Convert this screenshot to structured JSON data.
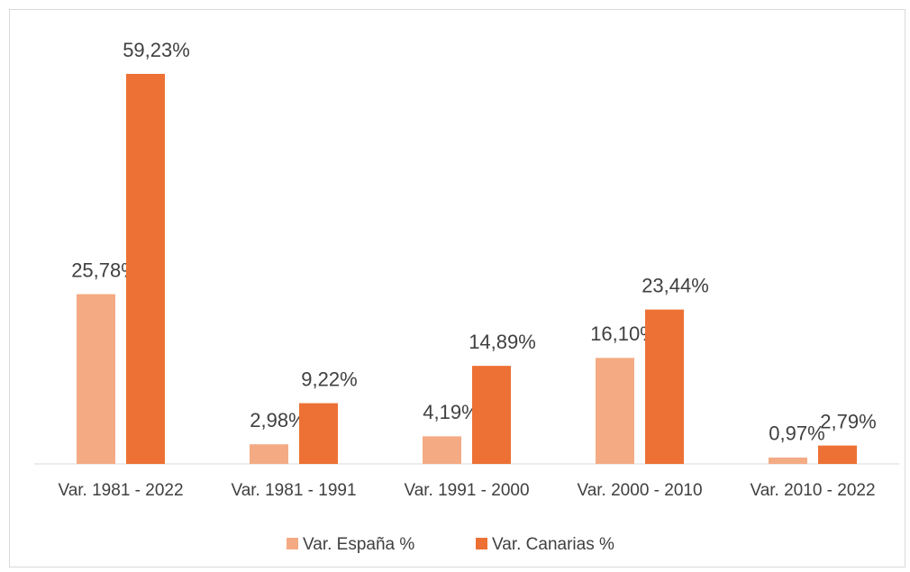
{
  "chart_data": {
    "type": "bar",
    "categories": [
      "Var. 1981 - 2022",
      "Var. 1981 - 1991",
      "Var. 1991 - 2000",
      "Var. 2000 - 2010",
      "Var. 2010 - 2022"
    ],
    "series": [
      {
        "name": "Var. España %",
        "color": "#f4ab84",
        "values": [
          25.78,
          2.98,
          4.19,
          16.1,
          0.97
        ],
        "value_labels": [
          "25,78%",
          "2,98%",
          "4,19%",
          "16,10%",
          "0,97%"
        ]
      },
      {
        "name": "Var. Canarias %",
        "color": "#ed7134",
        "values": [
          59.23,
          9.22,
          14.89,
          23.44,
          2.79
        ],
        "value_labels": [
          "59,23%",
          "9,22%",
          "14,89%",
          "23,44%",
          "2,79%"
        ]
      }
    ],
    "legend": "bottom"
  }
}
